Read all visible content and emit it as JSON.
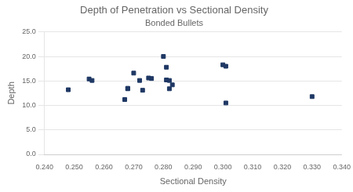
{
  "chart_data": {
    "type": "scatter",
    "title": "Depth of Penetration vs Sectional Density",
    "subtitle": "Bonded Bullets",
    "xlabel": "Sectional Density",
    "ylabel": "Depth",
    "x": [
      0.248,
      0.255,
      0.256,
      0.267,
      0.268,
      0.268,
      0.27,
      0.272,
      0.273,
      0.275,
      0.276,
      0.28,
      0.281,
      0.281,
      0.282,
      0.282,
      0.283,
      0.3,
      0.301,
      0.301,
      0.33
    ],
    "values": [
      13.2,
      15.4,
      15.1,
      11.2,
      13.4,
      13.5,
      16.6,
      15.1,
      13.1,
      15.6,
      15.5,
      20.0,
      17.8,
      15.2,
      15.1,
      13.4,
      14.2,
      18.3,
      18.0,
      10.5,
      11.8
    ],
    "color": "#1F3864",
    "marker": "square",
    "xlim": [
      0.24,
      0.34
    ],
    "ylim": [
      0,
      25
    ],
    "xticks": [
      {
        "value": 0.24,
        "label": "0.240"
      },
      {
        "value": 0.25,
        "label": "0.250"
      },
      {
        "value": 0.26,
        "label": "0.260"
      },
      {
        "value": 0.27,
        "label": "0.270"
      },
      {
        "value": 0.28,
        "label": "0.280"
      },
      {
        "value": 0.29,
        "label": "0.290"
      },
      {
        "value": 0.3,
        "label": "0.300"
      },
      {
        "value": 0.31,
        "label": "0.310"
      },
      {
        "value": 0.32,
        "label": "0.320"
      },
      {
        "value": 0.33,
        "label": "0.330"
      },
      {
        "value": 0.34,
        "label": "0.340"
      }
    ],
    "yticks": [
      {
        "value": 0,
        "label": "0.0"
      },
      {
        "value": 5,
        "label": "5.0"
      },
      {
        "value": 10,
        "label": "10.0"
      },
      {
        "value": 15,
        "label": "15.0"
      },
      {
        "value": 20,
        "label": "20.0"
      },
      {
        "value": 25,
        "label": "25.0"
      }
    ],
    "grid": "y"
  }
}
